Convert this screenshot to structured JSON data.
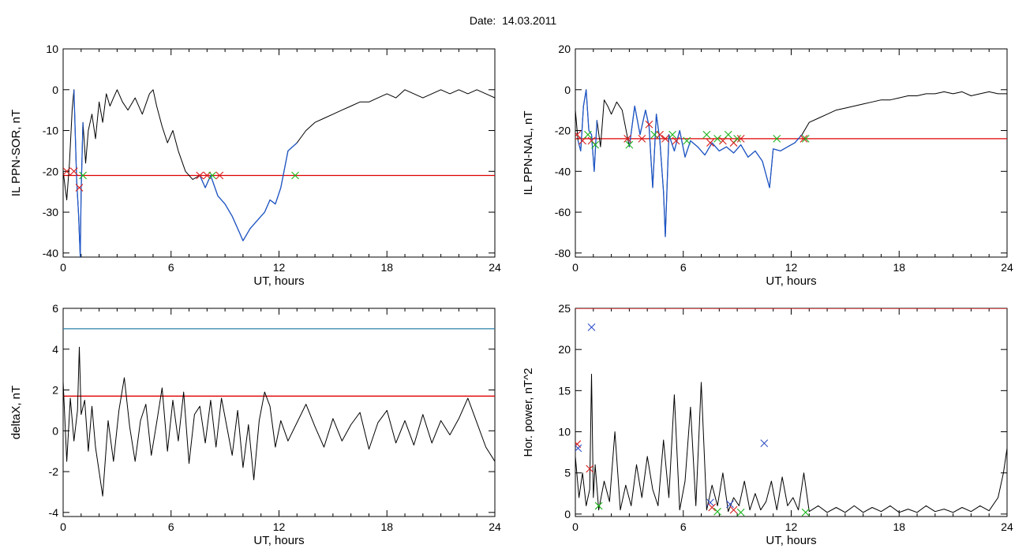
{
  "header": {
    "title": "Date:  14.03.2011"
  },
  "colors": {
    "trace": "#000000",
    "highlight": "#1f57c8",
    "threshold_red": "#e00000",
    "threshold_teal": "#2a7fa8",
    "marker_red": "#d81b1b",
    "marker_green": "#18b418",
    "marker_blue": "#3050c8"
  },
  "chart_data": [
    {
      "id": "sor",
      "type": "line",
      "ylabel": "IL PPN-SOR, nT",
      "xlabel": "UT, hours",
      "xlim": [
        0,
        24
      ],
      "ylim": [
        -41,
        10
      ],
      "xticks": [
        0,
        6,
        12,
        18,
        24
      ],
      "xtick_labels": [
        "0",
        "6",
        "12",
        "18",
        "24"
      ],
      "yticks": [
        -40,
        -30,
        -20,
        -10,
        0,
        10
      ],
      "ytick_labels": [
        "-40",
        "-30",
        "-20",
        "-10",
        "0",
        "10"
      ],
      "series": [
        {
          "x": [
            0,
            0.2,
            0.35,
            0.5,
            0.6,
            0.75,
            0.85,
            0.95,
            1.0,
            1.1,
            1.25,
            1.4,
            1.6,
            1.8,
            2.0,
            2.2,
            2.4,
            2.6,
            2.8,
            3.0,
            3.3,
            3.6,
            4.0,
            4.4,
            4.8,
            5.0,
            5.2,
            5.5,
            5.8,
            6.1,
            6.4,
            6.8,
            7.2,
            7.6,
            7.9,
            8.2,
            8.6,
            9.0,
            9.4,
            9.8,
            10.0,
            10.4,
            10.8,
            11.2,
            11.5,
            11.8,
            12.1,
            12.5,
            13.0,
            13.5,
            14.0,
            14.5,
            15.0,
            15.5,
            16.0,
            16.5,
            17.0,
            17.5,
            18.0,
            18.5,
            19.0,
            19.5,
            20.0,
            20.5,
            21.0,
            21.5,
            22.0,
            22.5,
            23.0,
            23.5,
            24.0
          ],
          "y": [
            -20,
            -27,
            -18,
            -5,
            0,
            -22,
            -30,
            -41,
            -25,
            -8,
            -18,
            -10,
            -6,
            -12,
            -3,
            -8,
            -1,
            -4,
            -2,
            0,
            -3,
            -5,
            -2,
            -6,
            -1,
            0,
            -4,
            -9,
            -13,
            -10,
            -15,
            -20,
            -22,
            -21,
            -24,
            -21,
            -26,
            -28,
            -31,
            -35,
            -37,
            -34,
            -32,
            -30,
            -27,
            -28,
            -24,
            -15,
            -13,
            -10,
            -8,
            -7,
            -6,
            -5,
            -4,
            -3,
            -3,
            -2,
            -1,
            -2,
            0,
            -1,
            -2,
            -1,
            0,
            -1,
            0,
            -1,
            0,
            -1,
            -2
          ],
          "highlight_ranges": [
            [
              0.6,
              1.2
            ],
            [
              7.5,
              13.0
            ]
          ]
        }
      ],
      "threshold": {
        "value": -21,
        "color": "red"
      },
      "markers": [
        {
          "x": 0.2,
          "y": -20,
          "color": "red"
        },
        {
          "x": 0.6,
          "y": -20,
          "color": "red"
        },
        {
          "x": 0.9,
          "y": -24,
          "color": "red"
        },
        {
          "x": 1.1,
          "y": -21,
          "color": "green"
        },
        {
          "x": 7.6,
          "y": -21,
          "color": "red"
        },
        {
          "x": 8.0,
          "y": -21,
          "color": "red"
        },
        {
          "x": 8.3,
          "y": -21,
          "color": "green"
        },
        {
          "x": 8.7,
          "y": -21,
          "color": "red"
        },
        {
          "x": 12.9,
          "y": -21,
          "color": "green"
        }
      ]
    },
    {
      "id": "nal",
      "type": "line",
      "ylabel": "IL PPN-NAL, nT",
      "xlabel": "UT, hours",
      "xlim": [
        0,
        24
      ],
      "ylim": [
        -82,
        20
      ],
      "xticks": [
        0,
        6,
        12,
        18,
        24
      ],
      "xtick_labels": [
        "0",
        "6",
        "12",
        "18",
        "24"
      ],
      "yticks": [
        -80,
        -60,
        -40,
        -20,
        0,
        20
      ],
      "ytick_labels": [
        "-80",
        "-60",
        "-40",
        "-20",
        "0",
        "20"
      ],
      "series": [
        {
          "x": [
            0,
            0.15,
            0.3,
            0.45,
            0.6,
            0.75,
            0.9,
            1.05,
            1.2,
            1.4,
            1.6,
            1.8,
            2.0,
            2.3,
            2.6,
            3.0,
            3.3,
            3.6,
            3.9,
            4.1,
            4.3,
            4.5,
            4.7,
            4.9,
            5.0,
            5.2,
            5.5,
            5.8,
            6.1,
            6.4,
            6.8,
            7.2,
            7.6,
            8.0,
            8.4,
            8.8,
            9.2,
            9.6,
            10.0,
            10.4,
            10.8,
            11.0,
            11.4,
            11.8,
            12.2,
            12.6,
            13.0,
            13.5,
            14.0,
            14.5,
            15.0,
            15.5,
            16.0,
            16.5,
            17.0,
            17.5,
            18.0,
            18.5,
            19.0,
            19.5,
            20.0,
            20.5,
            21.0,
            21.5,
            22.0,
            22.5,
            23.0,
            23.5,
            24.0
          ],
          "y": [
            -10,
            -25,
            -30,
            -8,
            0,
            -20,
            -22,
            -40,
            -15,
            -28,
            -5,
            -8,
            -12,
            -6,
            -10,
            -28,
            -8,
            -22,
            -10,
            -18,
            -48,
            -12,
            -25,
            -50,
            -72,
            -22,
            -30,
            -20,
            -33,
            -25,
            -28,
            -32,
            -26,
            -30,
            -28,
            -31,
            -27,
            -33,
            -30,
            -35,
            -48,
            -29,
            -30,
            -28,
            -26,
            -22,
            -16,
            -14,
            -12,
            -10,
            -9,
            -8,
            -7,
            -6,
            -5,
            -5,
            -4,
            -3,
            -3,
            -2,
            -2,
            -1,
            -2,
            -1,
            -3,
            -2,
            -1,
            -2,
            -2
          ],
          "highlight_ranges": [
            [
              0.1,
              1.3
            ],
            [
              2.8,
              12.6
            ]
          ]
        }
      ],
      "threshold": {
        "value": -24,
        "color": "red"
      },
      "markers": [
        {
          "x": 0.1,
          "y": -22,
          "color": "red"
        },
        {
          "x": 0.4,
          "y": -25,
          "color": "red"
        },
        {
          "x": 0.7,
          "y": -22,
          "color": "green"
        },
        {
          "x": 0.9,
          "y": -25,
          "color": "red"
        },
        {
          "x": 1.1,
          "y": -27,
          "color": "green"
        },
        {
          "x": 2.9,
          "y": -24,
          "color": "red"
        },
        {
          "x": 3.0,
          "y": -27,
          "color": "green"
        },
        {
          "x": 3.7,
          "y": -24,
          "color": "red"
        },
        {
          "x": 4.1,
          "y": -17,
          "color": "red"
        },
        {
          "x": 4.4,
          "y": -22,
          "color": "green"
        },
        {
          "x": 4.7,
          "y": -22,
          "color": "red"
        },
        {
          "x": 5.0,
          "y": -24,
          "color": "red"
        },
        {
          "x": 5.4,
          "y": -22,
          "color": "green"
        },
        {
          "x": 5.6,
          "y": -25,
          "color": "red"
        },
        {
          "x": 6.2,
          "y": -25,
          "color": "green"
        },
        {
          "x": 7.3,
          "y": -22,
          "color": "green"
        },
        {
          "x": 7.5,
          "y": -26,
          "color": "red"
        },
        {
          "x": 7.9,
          "y": -24,
          "color": "green"
        },
        {
          "x": 8.2,
          "y": -25,
          "color": "red"
        },
        {
          "x": 8.5,
          "y": -22,
          "color": "green"
        },
        {
          "x": 8.8,
          "y": -26,
          "color": "red"
        },
        {
          "x": 9.0,
          "y": -24,
          "color": "green"
        },
        {
          "x": 9.2,
          "y": -24,
          "color": "red"
        },
        {
          "x": 11.2,
          "y": -24,
          "color": "green"
        },
        {
          "x": 12.7,
          "y": -24,
          "color": "red"
        },
        {
          "x": 12.8,
          "y": -24,
          "color": "green"
        }
      ]
    },
    {
      "id": "deltax",
      "type": "line",
      "ylabel": "deltaX, nT",
      "xlabel": "UT, hours",
      "xlim": [
        0,
        24
      ],
      "ylim": [
        -4.2,
        6
      ],
      "xticks": [
        0,
        6,
        12,
        18,
        24
      ],
      "xtick_labels": [
        "0",
        "6",
        "12",
        "18",
        "24"
      ],
      "yticks": [
        -4,
        -2,
        0,
        2,
        4,
        6
      ],
      "ytick_labels": [
        "-4",
        "-2",
        "0",
        "2",
        "4",
        "6"
      ],
      "series": [
        {
          "x": [
            0,
            0.2,
            0.4,
            0.6,
            0.8,
            0.9,
            1.0,
            1.2,
            1.4,
            1.6,
            1.8,
            2.0,
            2.2,
            2.5,
            2.8,
            3.1,
            3.4,
            3.7,
            4.0,
            4.3,
            4.6,
            4.9,
            5.2,
            5.5,
            5.8,
            6.1,
            6.4,
            6.7,
            7.0,
            7.3,
            7.6,
            7.9,
            8.2,
            8.5,
            8.8,
            9.1,
            9.4,
            9.7,
            10.0,
            10.3,
            10.6,
            10.9,
            11.2,
            11.5,
            11.8,
            12.1,
            12.5,
            13.0,
            13.5,
            14.0,
            14.5,
            15.0,
            15.5,
            16.0,
            16.5,
            17.0,
            17.5,
            18.0,
            18.5,
            19.0,
            19.5,
            20.0,
            20.5,
            21.0,
            21.5,
            22.0,
            22.5,
            23.0,
            23.5,
            24.0
          ],
          "y": [
            2.4,
            -1.5,
            1.6,
            -0.5,
            1.0,
            4.1,
            0.8,
            1.5,
            -1.0,
            1.2,
            -0.8,
            -2.0,
            -3.2,
            0.5,
            -1.5,
            1.0,
            2.6,
            0.2,
            -1.5,
            0.5,
            1.3,
            -1.2,
            0.4,
            2.1,
            -1.0,
            1.5,
            -0.5,
            1.9,
            -1.6,
            0.8,
            1.2,
            -0.6,
            1.5,
            -0.8,
            1.6,
            0.2,
            -1.2,
            1.0,
            -1.8,
            0.3,
            -2.4,
            0.5,
            1.9,
            1.2,
            -0.8,
            0.5,
            -0.5,
            0.4,
            1.3,
            0.2,
            -0.8,
            0.6,
            -0.5,
            0.3,
            0.9,
            -0.9,
            0.4,
            1.0,
            -0.6,
            0.5,
            -0.7,
            0.8,
            -0.6,
            0.5,
            -0.2,
            0.6,
            1.6,
            0.4,
            -0.8,
            -1.5
          ]
        }
      ],
      "thresholds": [
        {
          "value": 5.0,
          "color": "teal"
        },
        {
          "value": 1.7,
          "color": "red"
        }
      ]
    },
    {
      "id": "power",
      "type": "line",
      "ylabel": "Hor. power, nT^2",
      "xlabel": "UT, hours",
      "xlim": [
        0,
        24
      ],
      "ylim": [
        -0.3,
        25
      ],
      "xticks": [
        0,
        6,
        12,
        18,
        24
      ],
      "xtick_labels": [
        "0",
        "6",
        "12",
        "18",
        "24"
      ],
      "yticks": [
        0,
        5,
        10,
        15,
        20,
        25
      ],
      "ytick_labels": [
        "0",
        "5",
        "10",
        "15",
        "20",
        "25"
      ],
      "series": [
        {
          "x": [
            0,
            0.2,
            0.4,
            0.6,
            0.8,
            0.9,
            1.0,
            1.1,
            1.3,
            1.6,
            1.9,
            2.2,
            2.5,
            2.8,
            3.1,
            3.4,
            3.7,
            4.0,
            4.3,
            4.6,
            4.9,
            5.2,
            5.5,
            5.8,
            6.1,
            6.4,
            6.7,
            7.0,
            7.3,
            7.6,
            7.9,
            8.2,
            8.5,
            8.8,
            9.1,
            9.4,
            9.7,
            10.0,
            10.3,
            10.6,
            10.9,
            11.2,
            11.5,
            11.8,
            12.1,
            12.4,
            12.7,
            13.0,
            13.5,
            14.0,
            14.5,
            15.0,
            15.5,
            16.0,
            16.5,
            17.0,
            17.5,
            18.0,
            18.5,
            19.0,
            19.5,
            20.0,
            20.5,
            21.0,
            21.5,
            22.0,
            22.5,
            23.0,
            23.5,
            23.8,
            24.0
          ],
          "y": [
            7.0,
            2.0,
            5.0,
            1.0,
            3.0,
            17.0,
            2.0,
            6.0,
            0.5,
            4.0,
            1.5,
            10.0,
            0.5,
            3.5,
            1.0,
            6.0,
            2.0,
            7.0,
            3.0,
            1.0,
            9.0,
            2.0,
            14.5,
            0.5,
            4.0,
            13.0,
            1.0,
            16.0,
            0.5,
            3.5,
            1.0,
            5.0,
            0.3,
            2.0,
            1.0,
            4.0,
            0.5,
            2.5,
            0.5,
            1.5,
            4.0,
            0.5,
            4.5,
            1.0,
            2.0,
            0.5,
            5.0,
            0.3,
            1.0,
            0.2,
            0.8,
            0.2,
            1.0,
            0.2,
            0.8,
            0.3,
            1.0,
            0.2,
            0.6,
            0.2,
            1.0,
            0.3,
            0.6,
            0.2,
            0.8,
            0.3,
            1.0,
            0.4,
            2.0,
            5.0,
            8.0
          ]
        }
      ],
      "threshold": {
        "value": 25,
        "color": "red"
      },
      "markers": [
        {
          "x": 0.1,
          "y": 8.5,
          "color": "red"
        },
        {
          "x": 0.15,
          "y": 8.0,
          "color": "blue"
        },
        {
          "x": 0.8,
          "y": 5.5,
          "color": "red"
        },
        {
          "x": 0.9,
          "y": 22.7,
          "color": "blue"
        },
        {
          "x": 1.3,
          "y": 1.0,
          "color": "green"
        },
        {
          "x": 7.5,
          "y": 1.4,
          "color": "blue"
        },
        {
          "x": 7.6,
          "y": 0.8,
          "color": "red"
        },
        {
          "x": 7.9,
          "y": 0.3,
          "color": "green"
        },
        {
          "x": 8.6,
          "y": 1.2,
          "color": "blue"
        },
        {
          "x": 8.8,
          "y": 0.5,
          "color": "red"
        },
        {
          "x": 9.2,
          "y": 0.2,
          "color": "green"
        },
        {
          "x": 10.5,
          "y": 8.6,
          "color": "blue"
        },
        {
          "x": 12.8,
          "y": 0.2,
          "color": "green"
        }
      ]
    }
  ]
}
